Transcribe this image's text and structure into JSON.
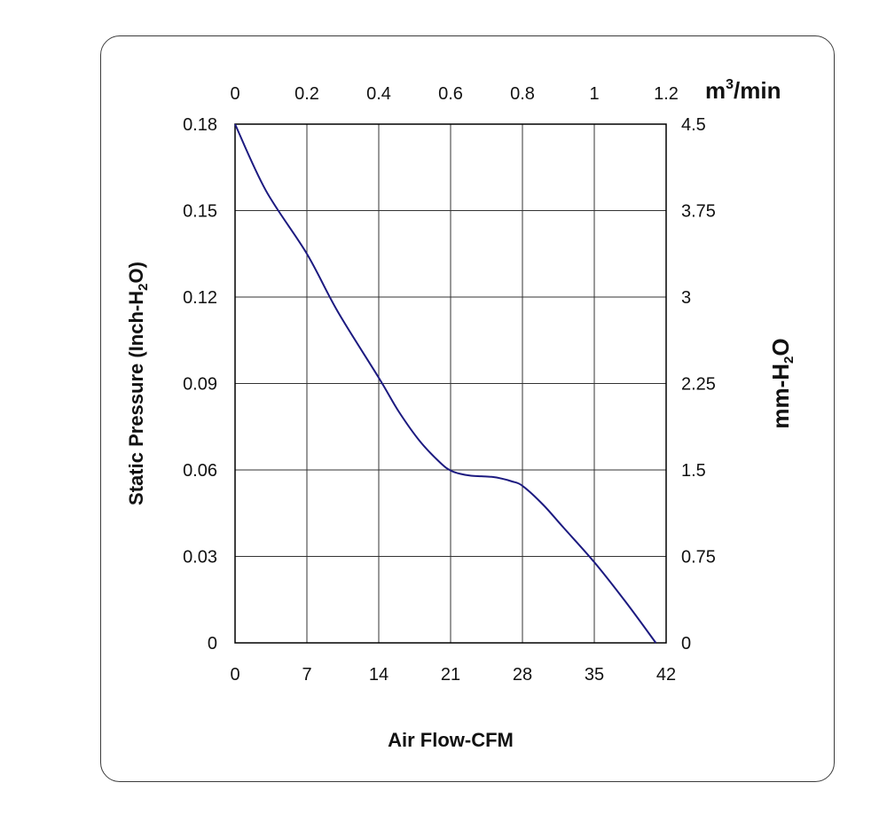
{
  "chart_data": {
    "type": "line",
    "xlabel": "Air Flow-CFM",
    "ylabel": {
      "pre": "Static Pressure (Inch-H",
      "sub": "2",
      "post": "O)"
    },
    "top_axis_unit": {
      "pre": "m",
      "sup": "3",
      "post": "/min"
    },
    "right_axis_unit": {
      "pre": "mm-H",
      "sub": "2",
      "post": "O"
    },
    "xlim": [
      0,
      42
    ],
    "ylim": [
      0,
      0.18
    ],
    "x_ticks": [
      "0",
      "7",
      "14",
      "21",
      "28",
      "35",
      "42"
    ],
    "y_ticks": [
      "0",
      "0.03",
      "0.06",
      "0.09",
      "0.12",
      "0.15",
      "0.18"
    ],
    "top_ticks": [
      "0",
      "0.2",
      "0.4",
      "0.6",
      "0.8",
      "1",
      "1.2"
    ],
    "right_ticks": [
      "0",
      "0.75",
      "1.5",
      "2.25",
      "3",
      "3.75",
      "4.5"
    ],
    "grid": true,
    "line_color": "#1c1a80",
    "series": [
      {
        "x": [
          0,
          3,
          7,
          10,
          14,
          16,
          18,
          20,
          21,
          22,
          23,
          24,
          25,
          26,
          27,
          28,
          30,
          32,
          35,
          38,
          41
        ],
        "y": [
          0.18,
          0.157,
          0.135,
          0.115,
          0.092,
          0.08,
          0.07,
          0.0625,
          0.0598,
          0.0586,
          0.058,
          0.0578,
          0.0576,
          0.057,
          0.056,
          0.0545,
          0.048,
          0.04,
          0.028,
          0.0145,
          0.0
        ]
      }
    ]
  }
}
